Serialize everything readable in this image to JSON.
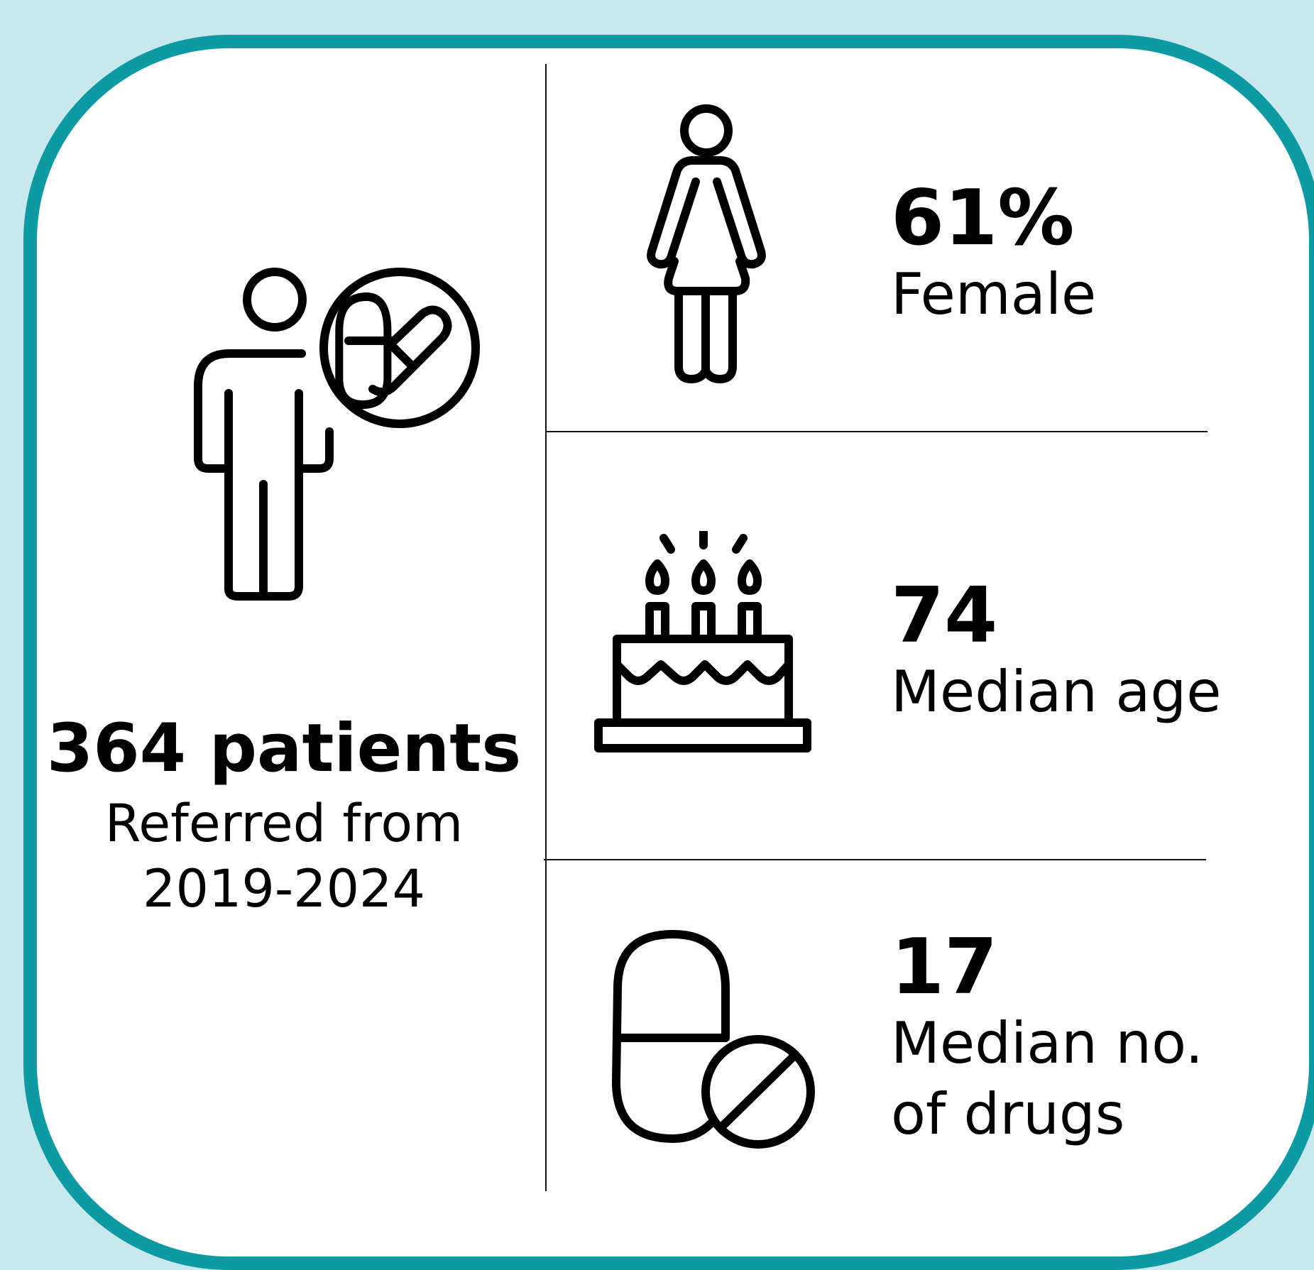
{
  "colors": {
    "background": "#c9e8ec",
    "card_border": "#0c9aa5",
    "card": "#ffffff",
    "ink": "#000000"
  },
  "summary": {
    "icon": "patient-with-medication-icon",
    "count_label": "364 patients",
    "subtitle_line1": "Referred from",
    "subtitle_line2": "2019-2024"
  },
  "stats": [
    {
      "icon": "female-icon",
      "value": "61%",
      "label": "Female"
    },
    {
      "icon": "birthday-cake-icon",
      "value": "74",
      "label": "Median age"
    },
    {
      "icon": "pills-icon",
      "value": "17",
      "label_line1": "Median no.",
      "label_line2": "of drugs"
    }
  ]
}
